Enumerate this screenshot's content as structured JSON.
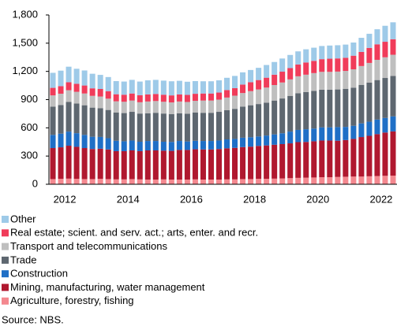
{
  "chart_data": {
    "type": "stacked_bar",
    "categories": [
      "2012",
      null,
      null,
      null,
      null,
      null,
      null,
      null,
      "2014",
      null,
      null,
      null,
      null,
      null,
      null,
      null,
      "2016",
      null,
      null,
      null,
      null,
      null,
      null,
      null,
      "2018",
      null,
      null,
      null,
      null,
      null,
      null,
      null,
      "2020",
      null,
      null,
      null,
      null,
      null,
      null,
      null,
      "2022",
      null,
      null,
      null
    ],
    "ylim": [
      0,
      1800
    ],
    "yticks": [
      0,
      300,
      600,
      900,
      {
        "value": 1200,
        "label": "1,200"
      },
      {
        "value": 1500,
        "label": "1,500"
      },
      {
        "value": 1800,
        "label": "1,800"
      }
    ],
    "series": [
      {
        "name": "Agriculture, forestry, fishing",
        "color": "#f4888f",
        "values": [
          55,
          58,
          60,
          58,
          55,
          55,
          58,
          55,
          52,
          52,
          55,
          52,
          50,
          50,
          52,
          50,
          50,
          50,
          52,
          50,
          50,
          50,
          52,
          52,
          55,
          55,
          58,
          58,
          60,
          62,
          65,
          68,
          70,
          72,
          75,
          75,
          78,
          80,
          82,
          82,
          85,
          88,
          90,
          92
        ]
      },
      {
        "name": "Mining, manufacturing, water management",
        "color": "#b0182f",
        "values": [
          330,
          335,
          350,
          340,
          330,
          320,
          320,
          315,
          300,
          300,
          305,
          300,
          310,
          310,
          305,
          305,
          315,
          315,
          320,
          320,
          320,
          325,
          330,
          335,
          340,
          345,
          350,
          355,
          360,
          365,
          370,
          380,
          380,
          385,
          390,
          390,
          385,
          390,
          400,
          420,
          430,
          445,
          460,
          470
        ]
      },
      {
        "name": "Construction",
        "color": "#1f6fc6",
        "values": [
          140,
          145,
          150,
          145,
          140,
          130,
          125,
          120,
          110,
          105,
          105,
          100,
          100,
          100,
          95,
          95,
          95,
          90,
          90,
          90,
          90,
          90,
          95,
          95,
          100,
          100,
          100,
          105,
          110,
          115,
          125,
          130,
          135,
          135,
          140,
          140,
          145,
          140,
          140,
          145,
          150,
          155,
          155,
          160
        ]
      },
      {
        "name": "Trade",
        "color": "#5e6770",
        "values": [
          300,
          305,
          315,
          315,
          315,
          310,
          305,
          300,
          300,
          300,
          305,
          300,
          295,
          300,
          300,
          295,
          295,
          295,
          300,
          300,
          300,
          305,
          310,
          320,
          330,
          340,
          345,
          350,
          360,
          370,
          380,
          390,
          395,
          400,
          400,
          400,
          400,
          405,
          405,
          410,
          415,
          420,
          425,
          430
        ]
      },
      {
        "name": "Transport and telecommunications",
        "color": "#bfbfbf",
        "values": [
          120,
          120,
          125,
          125,
          125,
          125,
          125,
          120,
          120,
          120,
          120,
          120,
          125,
          125,
          125,
          125,
          125,
          125,
          125,
          130,
          130,
          130,
          135,
          140,
          145,
          150,
          155,
          160,
          165,
          170,
          175,
          180,
          185,
          190,
          190,
          190,
          190,
          190,
          195,
          200,
          210,
          215,
          220,
          225
        ]
      },
      {
        "name": "Real estate; scient. and serv. act.; arts, enter. and recr.",
        "color": "#f03c5a",
        "values": [
          80,
          80,
          85,
          85,
          85,
          80,
          80,
          80,
          75,
          75,
          75,
          75,
          75,
          75,
          75,
          75,
          75,
          75,
          75,
          75,
          75,
          75,
          80,
          80,
          90,
          95,
          100,
          105,
          110,
          115,
          120,
          125,
          130,
          130,
          135,
          140,
          140,
          140,
          145,
          150,
          160,
          165,
          165,
          165
        ]
      },
      {
        "name": "Other",
        "color": "#9ecae8",
        "values": [
          160,
          165,
          165,
          160,
          160,
          155,
          150,
          150,
          140,
          140,
          145,
          145,
          150,
          150,
          150,
          150,
          145,
          140,
          135,
          130,
          130,
          130,
          130,
          130,
          130,
          130,
          130,
          135,
          135,
          140,
          140,
          140,
          140,
          140,
          140,
          140,
          140,
          140,
          140,
          150,
          150,
          160,
          170,
          180
        ]
      }
    ],
    "source": "Source: NBS."
  }
}
